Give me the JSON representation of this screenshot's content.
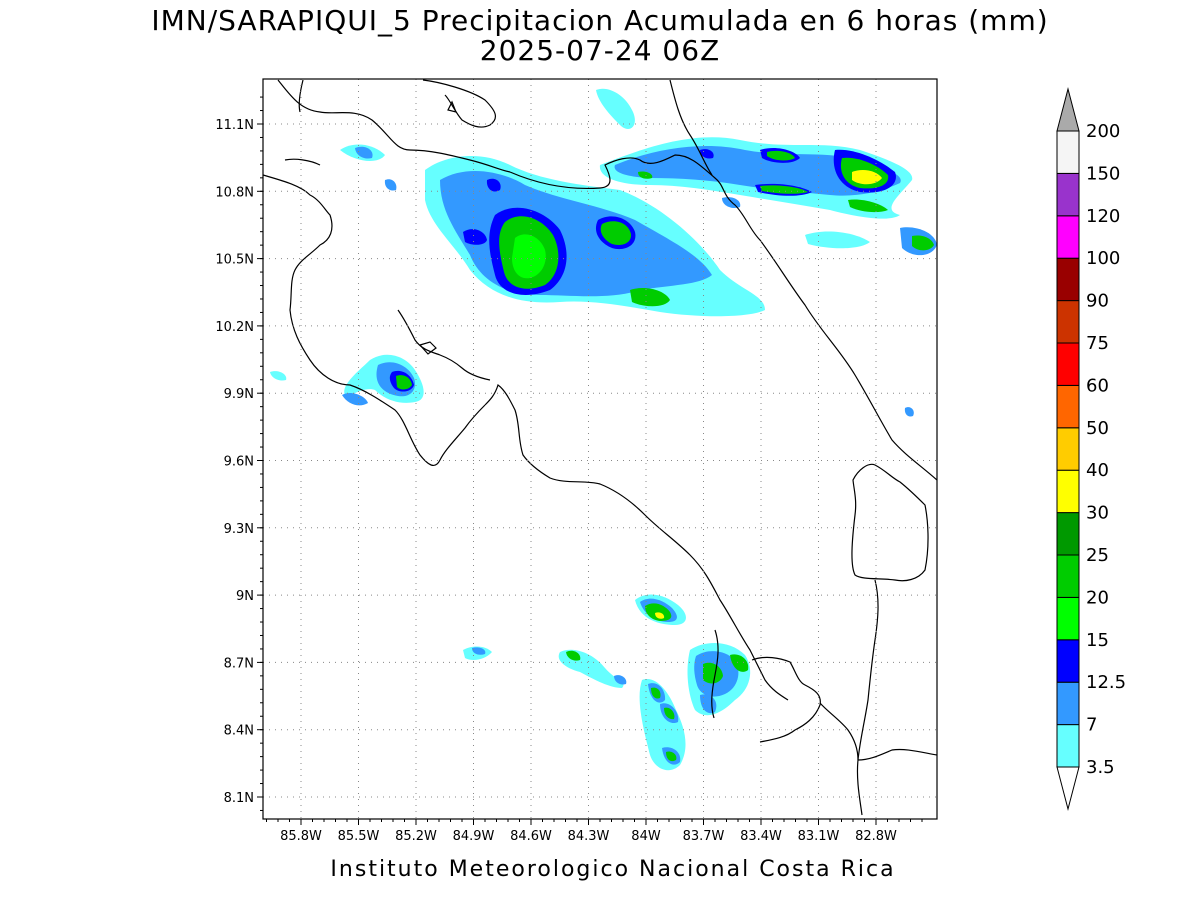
{
  "title": {
    "line1": "IMN/SARAPIQUI_5 Precipitacion Acumulada en 6 horas (mm)",
    "line2": "2025-07-24 06Z"
  },
  "credit": "Instituto Meteorologico Nacional Costa Rica",
  "map": {
    "lon_ticks": [
      "85.8W",
      "85.5W",
      "85.2W",
      "84.9W",
      "84.6W",
      "84.3W",
      "84W",
      "83.7W",
      "83.4W",
      "83.1W",
      "82.8W"
    ],
    "lat_ticks": [
      "11.1N",
      "10.8N",
      "10.5N",
      "10.2N",
      "9.9N",
      "9.6N",
      "9.3N",
      "9N",
      "8.7N",
      "8.4N",
      "8.1N"
    ],
    "grid": true,
    "coastline_color": "#000000"
  },
  "colorbar": {
    "labels": [
      "3.5",
      "7",
      "12.5",
      "15",
      "20",
      "25",
      "30",
      "40",
      "50",
      "60",
      "75",
      "90",
      "100",
      "120",
      "150",
      "200"
    ],
    "colors": [
      "#66ffff",
      "#3399ff",
      "#0000ff",
      "#00ff00",
      "#00cc00",
      "#009900",
      "#ffff00",
      "#ffcc00",
      "#ff6600",
      "#ff0000",
      "#cc3300",
      "#990000",
      "#ff00ff",
      "#9933cc",
      "#f5f5f5",
      "#aaaaaa"
    ],
    "under_color": "#ffffff",
    "over_color": "#aaaaaa"
  }
}
